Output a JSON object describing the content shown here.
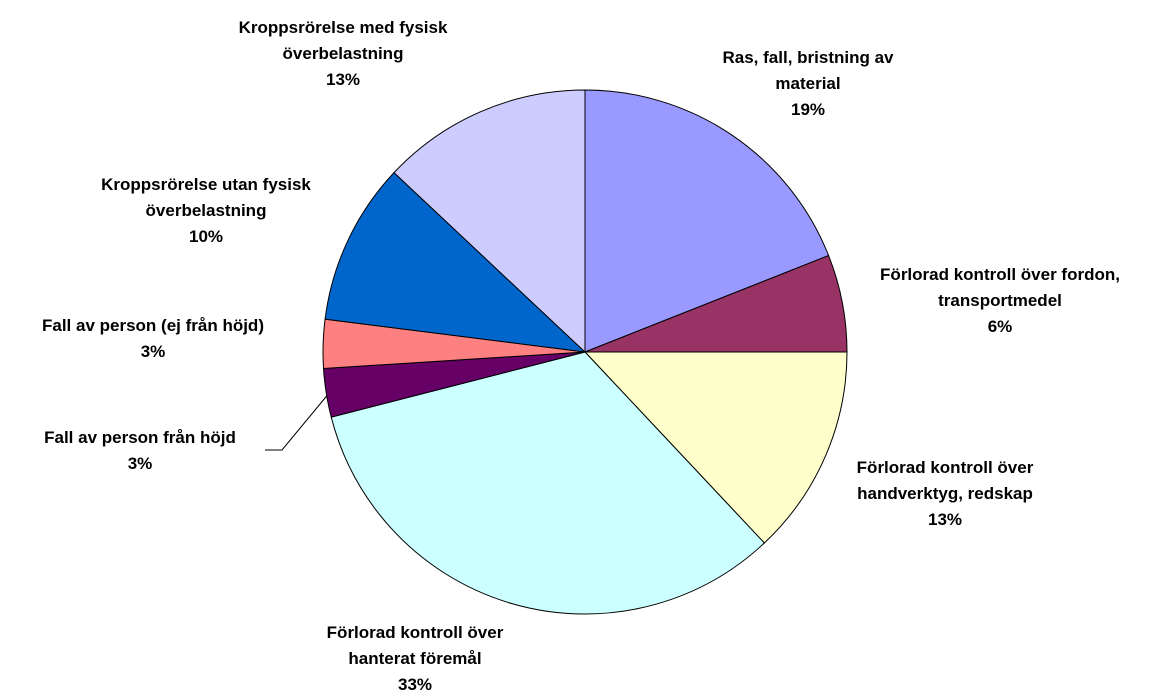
{
  "chart_data": {
    "type": "pie",
    "categories": [
      "Ras, fall, bristning av material",
      "Förlorad kontroll över fordon, transportmedel",
      "Förlorad kontroll över handverktyg, redskap",
      "Förlorad kontroll över hanterat föremål",
      "Fall av person från höjd",
      "Fall av person (ej från höjd)",
      "Kroppsrörelse utan fysisk överbelastning",
      "Kroppsrörelse med fysisk överbelastning"
    ],
    "values": [
      19,
      6,
      13,
      33,
      3,
      3,
      10,
      13
    ],
    "value_labels": [
      "19%",
      "6%",
      "13%",
      "33%",
      "3%",
      "3%",
      "10%",
      "13%"
    ],
    "colors": [
      "#9999ff",
      "#993366",
      "#ffffcc",
      "#ccffff",
      "#660066",
      "#ff8080",
      "#0066cc",
      "#ccccff"
    ]
  }
}
